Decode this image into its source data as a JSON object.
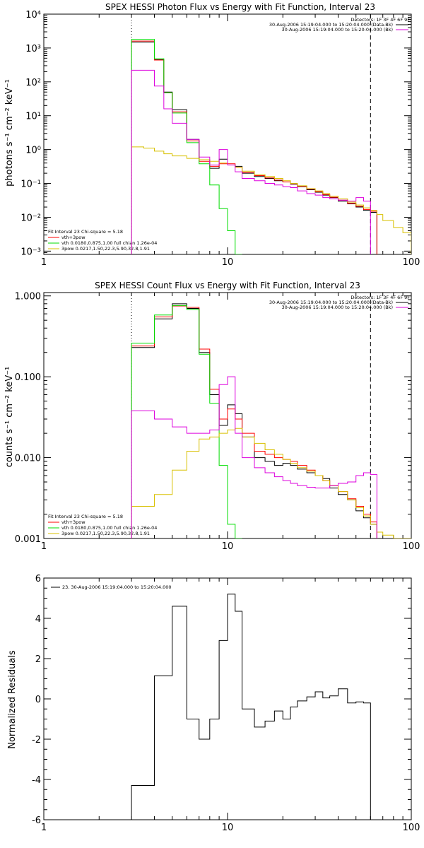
{
  "colors": {
    "black": "#000000",
    "red": "#ff0000",
    "green": "#00dd00",
    "magenta": "#dd00dd",
    "yellow": "#d8c000"
  },
  "chart_data": [
    {
      "type": "line",
      "title": "SPEX HESSI Photon Flux vs Energy with Fit Function, Interval 23",
      "xlabel": "",
      "ylabel": "photons s⁻¹ cm⁻² keV⁻¹",
      "xscale": "log",
      "yscale": "log",
      "xlim": [
        1,
        100
      ],
      "ylim": [
        0.0008,
        10000
      ],
      "xticks": [
        {
          "v": 1,
          "label": "1"
        },
        {
          "v": 10,
          "label": "10"
        },
        {
          "v": 100,
          "label": "100"
        }
      ],
      "yticks": [
        {
          "v": 0.001,
          "label": "10⁻³"
        },
        {
          "v": 0.01,
          "label": "10⁻²"
        },
        {
          "v": 0.1,
          "label": "10⁻¹"
        },
        {
          "v": 1,
          "label": "10⁰"
        },
        {
          "v": 10,
          "label": "10¹"
        },
        {
          "v": 100,
          "label": "10²"
        },
        {
          "v": 1000,
          "label": "10³"
        },
        {
          "v": 10000,
          "label": "10⁴"
        }
      ],
      "vlines": [
        {
          "x": 3,
          "style": "dotted"
        },
        {
          "x": 60,
          "style": "dashed"
        }
      ],
      "detectors_label": "Detectors: 1F 3F 4F 6F 9F",
      "legend_top": [
        {
          "text": "30-Aug-2006 15:19:04.000 to 15:20:04.000 (Data-Bk)",
          "color": "#000000"
        },
        {
          "text": "30-Aug-2006 15:19:04.000 to 15:20:04.000 (Bk)",
          "color": "#dd00dd"
        }
      ],
      "legend_bottom": [
        {
          "text": "Fit Interval 23   Chi-square = 5.18",
          "color": null
        },
        {
          "text": "vth+3pow",
          "color": "#ff0000"
        },
        {
          "text": "vth 0.0180,0.875,1.00  full chian 1.26e-04",
          "color": "#00dd00"
        },
        {
          "text": "3pow 0.0217,1.50,22.3,5.90,32.8,1.91",
          "color": "#d8c000"
        }
      ],
      "edges": [
        3,
        3.5,
        4,
        4.5,
        5,
        6,
        7,
        8,
        9,
        10,
        11,
        12,
        14,
        16,
        18,
        20,
        22,
        24,
        27,
        30,
        33,
        36,
        40,
        45,
        50,
        55,
        60,
        65,
        70,
        80,
        90,
        100
      ],
      "series": [
        {
          "name": "Data-Bk",
          "color": "#000000",
          "values": [
            1500,
            1500,
            450,
            50,
            15,
            2,
            0.5,
            0.28,
            0.52,
            0.35,
            0.32,
            0.2,
            0.16,
            0.14,
            0.12,
            0.11,
            0.095,
            0.08,
            0.065,
            0.055,
            0.045,
            0.038,
            0.03,
            0.025,
            0.02,
            0.016,
            0.014
          ]
        },
        {
          "name": "vth+3pow",
          "color": "#ff0000",
          "values": [
            1600,
            1600,
            440,
            48,
            13,
            1.8,
            0.45,
            0.32,
            0.38,
            0.38,
            0.3,
            0.21,
            0.17,
            0.145,
            0.125,
            0.11,
            0.098,
            0.082,
            0.068,
            0.057,
            0.047,
            0.039,
            0.032,
            0.026,
            0.021,
            0.017,
            0.015
          ]
        },
        {
          "name": "vth",
          "color": "#00dd00",
          "values": [
            1800,
            1800,
            480,
            48,
            12,
            1.6,
            0.38,
            0.09,
            0.018,
            0.004,
            0.0008
          ]
        },
        {
          "name": "3pow",
          "color": "#d8c000",
          "values": [
            1.2,
            1.1,
            0.9,
            0.75,
            0.65,
            0.55,
            0.5,
            0.45,
            0.4,
            0.35,
            0.3,
            0.23,
            0.18,
            0.16,
            0.14,
            0.12,
            0.1,
            0.085,
            0.07,
            0.06,
            0.05,
            0.042,
            0.035,
            0.028,
            0.023,
            0.019,
            0.016,
            0.012,
            0.008,
            0.005,
            0.0035
          ]
        },
        {
          "name": "Bk",
          "color": "#dd00dd",
          "values": [
            220,
            220,
            75,
            16,
            6,
            2,
            0.6,
            0.35,
            1.0,
            0.35,
            0.22,
            0.14,
            0.12,
            0.1,
            0.09,
            0.08,
            0.075,
            0.06,
            0.05,
            0.045,
            0.038,
            0.035,
            0.032,
            0.03,
            0.038,
            0.03
          ]
        }
      ]
    },
    {
      "type": "line",
      "title": "SPEX HESSI Count Flux vs Energy with Fit Function, Interval 23",
      "xlabel": "",
      "ylabel": "counts s⁻¹ cm⁻² keV⁻¹",
      "xscale": "log",
      "yscale": "log",
      "xlim": [
        1,
        100
      ],
      "ylim": [
        0.001,
        1.1
      ],
      "xticks": [
        {
          "v": 1,
          "label": "1"
        },
        {
          "v": 10,
          "label": "10"
        },
        {
          "v": 100,
          "label": "100"
        }
      ],
      "yticks": [
        {
          "v": 0.001,
          "label": "0.001"
        },
        {
          "v": 0.01,
          "label": "0.010"
        },
        {
          "v": 0.1,
          "label": "0.100"
        },
        {
          "v": 1,
          "label": "1.000"
        }
      ],
      "vlines": [
        {
          "x": 3,
          "style": "dotted"
        },
        {
          "x": 60,
          "style": "dashed"
        }
      ],
      "detectors_label": "Detectors: 1F 3F 4F 6F 9F",
      "legend_top": [
        {
          "text": "30-Aug-2006 15:19:04.000 to 15:20:04.000 (Data-Bk)",
          "color": "#000000"
        },
        {
          "text": "30-Aug-2006 15:19:04.000 to 15:20:04.000 (Bk)",
          "color": "#dd00dd"
        }
      ],
      "legend_bottom": [
        {
          "text": "Fit Interval 23   Chi-square = 5.18",
          "color": null
        },
        {
          "text": "vth+3pow",
          "color": "#ff0000"
        },
        {
          "text": "vth 0.0180,0.875,1.00  full chian 1.26e-04",
          "color": "#00dd00"
        },
        {
          "text": "3pow 0.0217,1.50,22.3,5.90,32.8,1.91",
          "color": "#d8c000"
        }
      ],
      "edges": [
        3,
        4,
        5,
        6,
        7,
        8,
        9,
        10,
        11,
        12,
        14,
        16,
        18,
        20,
        22,
        24,
        27,
        30,
        33,
        36,
        40,
        45,
        50,
        55,
        60,
        65,
        70,
        80,
        90,
        100
      ],
      "series": [
        {
          "name": "Data-Bk",
          "color": "#000000",
          "values": [
            0.23,
            0.52,
            0.8,
            0.7,
            0.2,
            0.06,
            0.025,
            0.045,
            0.035,
            0.018,
            0.01,
            0.009,
            0.008,
            0.0085,
            0.008,
            0.0072,
            0.0065,
            0.006,
            0.0055,
            0.0042,
            0.0035,
            0.003,
            0.0022,
            0.0018,
            0.0015
          ]
        },
        {
          "name": "vth+3pow",
          "color": "#ff0000",
          "values": [
            0.24,
            0.55,
            0.75,
            0.72,
            0.22,
            0.07,
            0.03,
            0.04,
            0.03,
            0.02,
            0.012,
            0.011,
            0.01,
            0.0095,
            0.009,
            0.008,
            0.007,
            0.006,
            0.0052,
            0.0045,
            0.0038,
            0.0031,
            0.0025,
            0.002,
            0.0016
          ]
        },
        {
          "name": "vth",
          "color": "#00dd00",
          "values": [
            0.26,
            0.58,
            0.76,
            0.68,
            0.19,
            0.047,
            0.008,
            0.0015,
            0.0003
          ]
        },
        {
          "name": "3pow",
          "color": "#d8c000",
          "values": [
            0.0025,
            0.0035,
            0.007,
            0.012,
            0.017,
            0.018,
            0.02,
            0.022,
            0.023,
            0.018,
            0.015,
            0.0125,
            0.011,
            0.0095,
            0.0085,
            0.0075,
            0.0068,
            0.006,
            0.0052,
            0.0045,
            0.0038,
            0.003,
            0.0024,
            0.0019,
            0.0015,
            0.0012,
            0.0011,
            0.0009,
            0.0006
          ]
        },
        {
          "name": "Bk",
          "color": "#dd00dd",
          "values": [
            0.038,
            0.03,
            0.024,
            0.02,
            0.02,
            0.022,
            0.08,
            0.1,
            0.02,
            0.01,
            0.0075,
            0.0065,
            0.0058,
            0.0052,
            0.0048,
            0.0045,
            0.0043,
            0.0042,
            0.0042,
            0.0045,
            0.0048,
            0.005,
            0.006,
            0.0065,
            0.0062
          ]
        }
      ]
    },
    {
      "type": "line",
      "title": "",
      "xlabel": "",
      "ylabel": "Normalized Residuals",
      "xscale": "log",
      "yscale": "linear",
      "xlim": [
        1,
        100
      ],
      "ylim": [
        -6,
        6
      ],
      "xticks": [
        {
          "v": 1,
          "label": "1"
        },
        {
          "v": 10,
          "label": "10"
        },
        {
          "v": 100,
          "label": "100"
        }
      ],
      "yticks": [
        {
          "v": -6,
          "label": "-6"
        },
        {
          "v": -4,
          "label": "-4"
        },
        {
          "v": -2,
          "label": "-2"
        },
        {
          "v": 0,
          "label": "0"
        },
        {
          "v": 2,
          "label": "2"
        },
        {
          "v": 4,
          "label": "4"
        },
        {
          "v": 6,
          "label": "6"
        }
      ],
      "vlines": [],
      "legend_top": [
        {
          "text": "23. 30-Aug-2006 15:19:04.000 to 15:20:04.000",
          "color": "#000000"
        }
      ],
      "edges": [
        3,
        4,
        5,
        6,
        7,
        8,
        9,
        10,
        11,
        12,
        14,
        16,
        18,
        20,
        22,
        24,
        27,
        30,
        33,
        36,
        40,
        45,
        50,
        55,
        60
      ],
      "series": [
        {
          "name": "23. 30-Aug-2006 15:19:04.000 to 15:20:04.000",
          "color": "#000000",
          "values": [
            -4.3,
            1.15,
            4.6,
            -1.0,
            -2.0,
            -1.0,
            2.9,
            5.2,
            4.35,
            -0.5,
            -1.4,
            -1.1,
            -0.6,
            -1.0,
            -0.4,
            -0.1,
            0.1,
            0.35,
            0.05,
            0.15,
            0.5,
            -0.2,
            -0.15,
            -0.2
          ]
        }
      ]
    }
  ]
}
